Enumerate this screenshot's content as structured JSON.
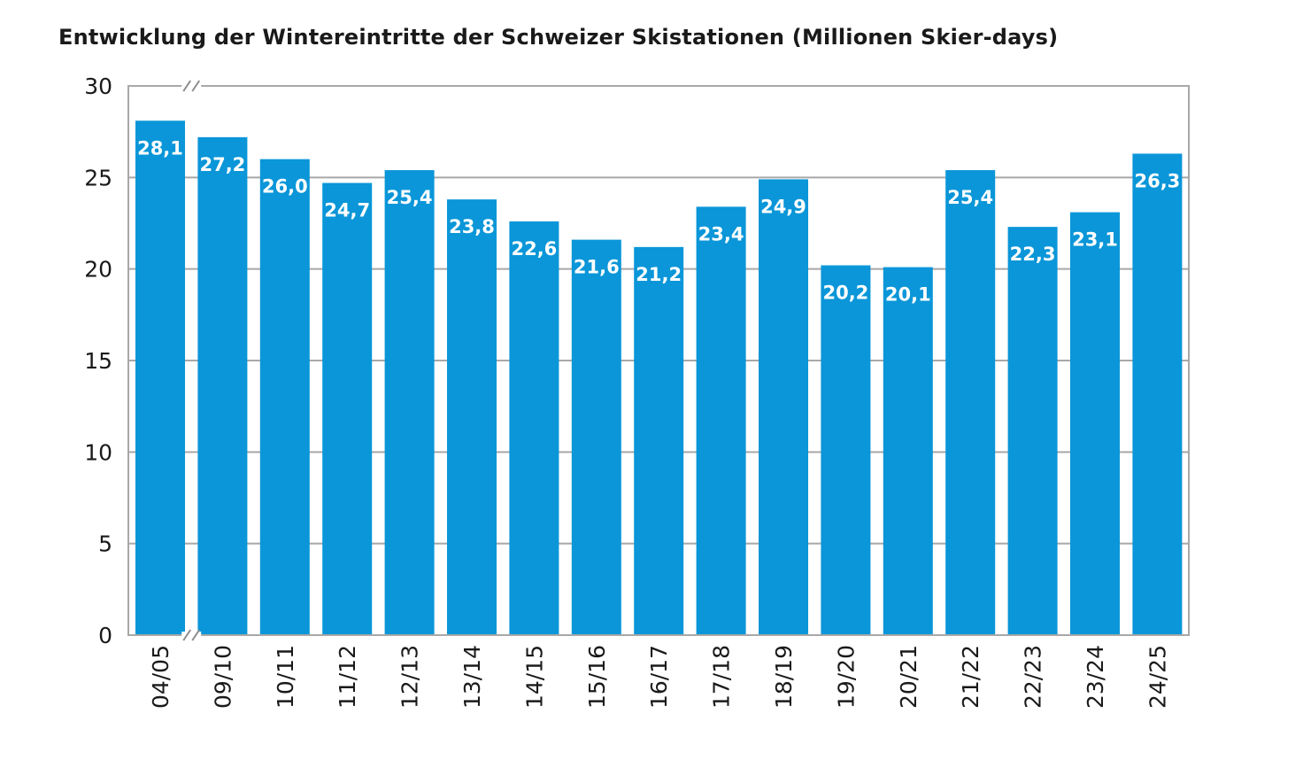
{
  "chart_data": {
    "type": "bar",
    "title": "Entwicklung der Wintereintritte der Schweizer Skistationen (Millionen Skier-days)",
    "xlabel": "",
    "ylabel": "",
    "ylim": [
      0,
      30
    ],
    "yticks": [
      "0",
      "5",
      "10",
      "15",
      "20",
      "25",
      "30"
    ],
    "grid": true,
    "axis_break": "between 04/05 and 09/10",
    "bar_color": "#0a96d8",
    "categories": [
      "04/05",
      "09/10",
      "10/11",
      "11/12",
      "12/13",
      "13/14",
      "14/15",
      "15/16",
      "16/17",
      "17/18",
      "18/19",
      "19/20",
      "20/21",
      "21/22",
      "22/23",
      "23/24",
      "24/25"
    ],
    "values": [
      28.1,
      27.2,
      26.0,
      24.7,
      25.4,
      23.8,
      22.6,
      21.6,
      21.2,
      23.4,
      24.9,
      20.2,
      20.1,
      25.4,
      22.3,
      23.1,
      26.3
    ],
    "value_labels": [
      "28,1",
      "27,2",
      "26,0",
      "24,7",
      "25,4",
      "23,8",
      "22,6",
      "21,6",
      "21,2",
      "23,4",
      "24,9",
      "20,2",
      "20,1",
      "25,4",
      "22,3",
      "23,1",
      "26,3"
    ]
  }
}
